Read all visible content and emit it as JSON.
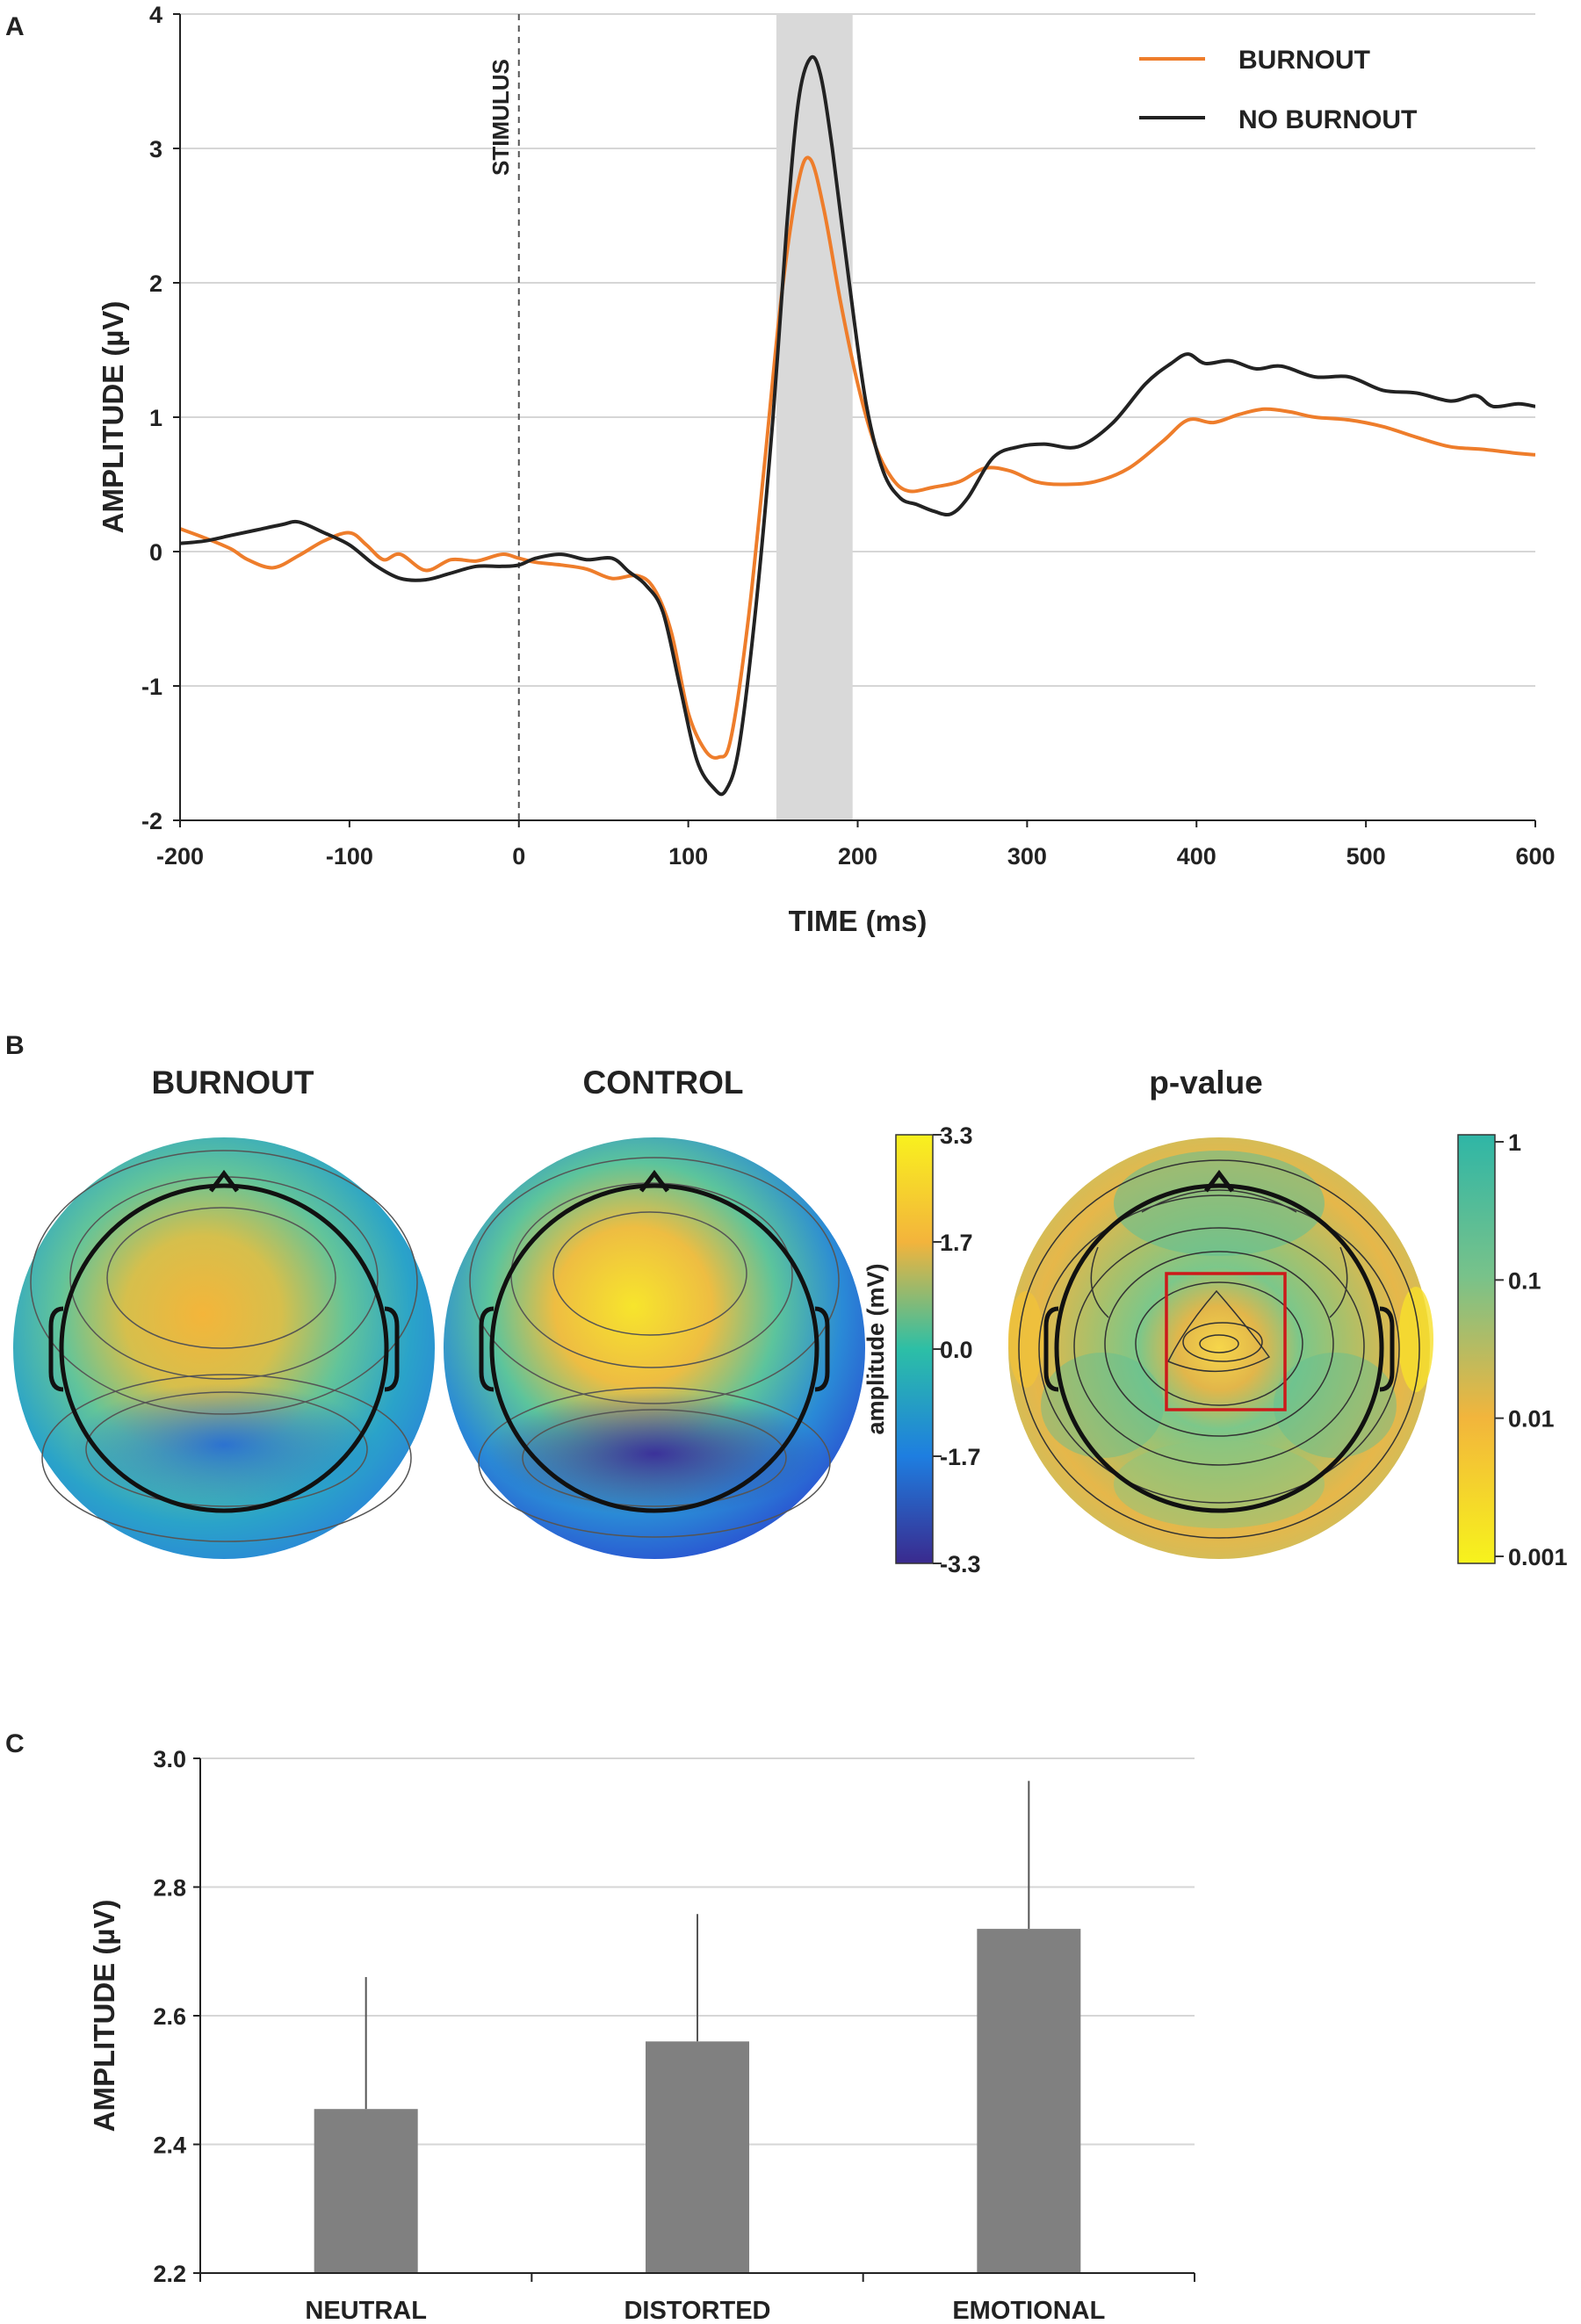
{
  "chart_data": [
    {
      "panel": "A",
      "type": "line",
      "xlabel": "TIME (ms)",
      "ylabel": "AMPLITUDE (µV)",
      "xlim": [
        -200,
        600
      ],
      "ylim": [
        -2,
        4
      ],
      "xticks": [
        -200,
        -100,
        0,
        100,
        200,
        300,
        400,
        500,
        600
      ],
      "yticks": [
        -2,
        -1,
        0,
        1,
        2,
        3,
        4
      ],
      "grid": "horizontal",
      "stimulus": {
        "x": 0,
        "label": "STIMULUS"
      },
      "shaded_window": [
        152,
        197
      ],
      "legend_position": "top-right",
      "series": [
        {
          "name": "BURNOUT",
          "color": "#ee7d2b",
          "x": [
            -200,
            -185,
            -170,
            -160,
            -145,
            -130,
            -115,
            -100,
            -90,
            -80,
            -70,
            -55,
            -40,
            -25,
            -10,
            0,
            10,
            25,
            40,
            55,
            70,
            80,
            90,
            100,
            110,
            118,
            125,
            135,
            145,
            155,
            165,
            172,
            180,
            190,
            200,
            210,
            220,
            230,
            245,
            260,
            275,
            290,
            305,
            320,
            340,
            360,
            380,
            395,
            410,
            425,
            440,
            455,
            470,
            490,
            510,
            530,
            550,
            570,
            590,
            600
          ],
          "y": [
            0.17,
            0.1,
            0.02,
            -0.06,
            -0.12,
            -0.03,
            0.08,
            0.14,
            0.05,
            -0.06,
            -0.02,
            -0.14,
            -0.06,
            -0.07,
            -0.02,
            -0.05,
            -0.08,
            -0.1,
            -0.13,
            -0.2,
            -0.18,
            -0.28,
            -0.6,
            -1.2,
            -1.48,
            -1.53,
            -1.4,
            -0.55,
            0.65,
            1.9,
            2.75,
            2.92,
            2.55,
            1.85,
            1.25,
            0.8,
            0.55,
            0.45,
            0.48,
            0.52,
            0.62,
            0.6,
            0.52,
            0.5,
            0.52,
            0.62,
            0.82,
            0.98,
            0.96,
            1.02,
            1.06,
            1.04,
            1.0,
            0.98,
            0.93,
            0.85,
            0.78,
            0.76,
            0.73,
            0.72
          ]
        },
        {
          "name": "NO BURNOUT",
          "color": "#222222",
          "x": [
            -200,
            -185,
            -170,
            -155,
            -140,
            -130,
            -115,
            -100,
            -85,
            -70,
            -55,
            -40,
            -25,
            -10,
            0,
            10,
            25,
            40,
            55,
            65,
            75,
            85,
            95,
            105,
            115,
            122,
            130,
            140,
            150,
            158,
            165,
            172,
            178,
            185,
            195,
            205,
            215,
            225,
            235,
            245,
            255,
            265,
            280,
            295,
            310,
            330,
            350,
            370,
            385,
            395,
            405,
            420,
            435,
            450,
            470,
            490,
            510,
            530,
            550,
            565,
            575,
            590,
            600
          ],
          "y": [
            0.06,
            0.08,
            0.12,
            0.16,
            0.2,
            0.22,
            0.14,
            0.05,
            -0.1,
            -0.2,
            -0.21,
            -0.16,
            -0.11,
            -0.11,
            -0.1,
            -0.05,
            -0.02,
            -0.06,
            -0.05,
            -0.15,
            -0.25,
            -0.45,
            -1.0,
            -1.55,
            -1.76,
            -1.78,
            -1.45,
            -0.4,
            1.0,
            2.4,
            3.35,
            3.67,
            3.55,
            3.0,
            2.0,
            1.1,
            0.6,
            0.4,
            0.35,
            0.3,
            0.28,
            0.4,
            0.7,
            0.78,
            0.8,
            0.78,
            0.95,
            1.25,
            1.4,
            1.47,
            1.4,
            1.42,
            1.36,
            1.38,
            1.3,
            1.3,
            1.2,
            1.18,
            1.12,
            1.16,
            1.08,
            1.1,
            1.08
          ]
        }
      ]
    },
    {
      "panel": "B",
      "type": "heatmap",
      "maps": [
        {
          "title": "BURNOUT"
        },
        {
          "title": "CONTROL"
        },
        {
          "title": "p-value"
        }
      ],
      "amplitude_colorbar": {
        "label": "amplitude (mV)",
        "ticks": [
          "3.3",
          "1.7",
          "0.0",
          "-1.7",
          "-3.3"
        ]
      },
      "pvalue_colorbar": {
        "ticks": [
          "1",
          "0.1",
          "0.01",
          "0.001"
        ]
      }
    },
    {
      "panel": "C",
      "type": "bar",
      "ylabel": "AMPLITUDE (µV)",
      "categories": [
        "NEUTRAL",
        "DISTORTED",
        "EMOTIONAL"
      ],
      "values": [
        2.455,
        2.56,
        2.735
      ],
      "error_upper": [
        2.66,
        2.758,
        2.965
      ],
      "ylim": [
        2.2,
        3.0
      ],
      "yticks": [
        "2.2",
        "2.4",
        "2.6",
        "2.8",
        "3.0"
      ],
      "bar_color": "#808080",
      "grid": "horizontal"
    }
  ]
}
